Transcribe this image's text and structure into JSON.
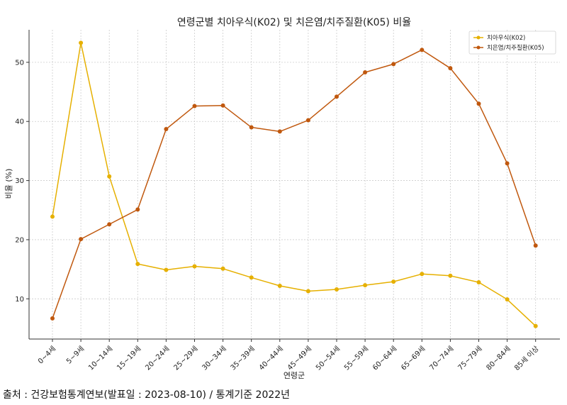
{
  "chart_data": {
    "type": "line",
    "title": "연령군별 치아우식(K02) 및 치은염/치주질환(K05) 비율",
    "xlabel": "연령군",
    "ylabel": "비율 (%)",
    "categories": [
      "0~4세",
      "5~9세",
      "10~14세",
      "15~19세",
      "20~24세",
      "25~29세",
      "30~34세",
      "35~39세",
      "40~44세",
      "45~49세",
      "50~54세",
      "55~59세",
      "60~64세",
      "65~69세",
      "70~74세",
      "75~79세",
      "80~84세",
      "85세 이상"
    ],
    "series": [
      {
        "name": "치아우식(K02)",
        "color": "#E6B000",
        "values": [
          23.9,
          53.3,
          30.7,
          15.9,
          14.9,
          15.5,
          15.1,
          13.6,
          12.2,
          11.3,
          11.6,
          12.3,
          12.9,
          14.2,
          13.9,
          12.8,
          9.9,
          5.4
        ]
      },
      {
        "name": "치은염/치주질환(K05)",
        "color": "#C0580E",
        "values": [
          6.7,
          20.1,
          22.6,
          25.1,
          38.7,
          42.6,
          42.7,
          39.0,
          38.3,
          40.2,
          44.2,
          48.3,
          49.7,
          52.1,
          49.0,
          43.0,
          32.9,
          19.0
        ]
      }
    ],
    "yticks": [
      10,
      20,
      30,
      40,
      50
    ],
    "ylim": [
      3.2,
      55.5
    ],
    "grid": true,
    "legend": "top-right"
  },
  "source_text": "출처 : 건강보험통계연보(발표일 : 2023-08-10) / 통계기준 2022년"
}
